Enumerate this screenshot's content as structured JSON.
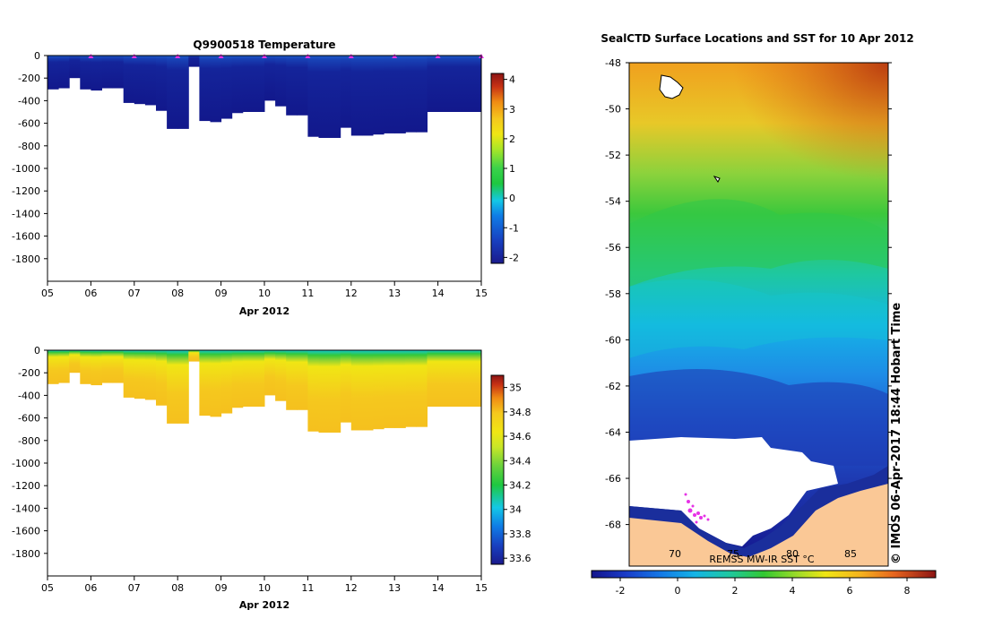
{
  "chart_data": [
    {
      "type": "heatmap",
      "title": "Q9900518  Temperature",
      "xlabel": "Apr 2012",
      "ylabel": "",
      "x_ticks": [
        "05",
        "06",
        "07",
        "08",
        "09",
        "10",
        "11",
        "12",
        "13",
        "14",
        "15"
      ],
      "xlim": [
        5,
        15
      ],
      "y_ticks": [
        0,
        -200,
        -400,
        -600,
        -800,
        -1000,
        -1200,
        -1400,
        -1600,
        -1800
      ],
      "ylim": [
        -2000,
        0
      ],
      "profile_days": [
        5.0,
        5.25,
        5.5,
        5.75,
        6.0,
        6.25,
        6.5,
        6.75,
        7.0,
        7.25,
        7.5,
        7.75,
        8.0,
        8.25,
        8.5,
        8.75,
        9.0,
        9.25,
        9.5,
        9.75,
        10.0,
        10.25,
        10.5,
        10.75,
        11.0,
        11.25,
        11.5,
        11.75,
        12.0,
        12.25,
        12.5,
        12.75,
        13.0,
        13.25,
        13.5,
        13.75,
        14.0,
        14.25,
        14.5,
        14.75
      ],
      "profile_max_depth": [
        -300,
        -290,
        -200,
        -300,
        -310,
        -290,
        -290,
        -420,
        -430,
        -440,
        -490,
        -650,
        -650,
        -100,
        -580,
        -590,
        -560,
        -510,
        -500,
        -500,
        -400,
        -450,
        -530,
        -530,
        -720,
        -730,
        -730,
        -640,
        -710,
        -710,
        -700,
        -690,
        -690,
        -680,
        -680,
        -500,
        -500,
        -500,
        -500,
        -500
      ],
      "surface_markers": [
        6,
        7,
        8,
        9,
        10,
        11,
        12,
        13,
        14,
        15
      ],
      "colorbar": {
        "ticks": [
          4,
          3,
          2,
          1,
          0,
          -1,
          -2
        ],
        "min": -2.2,
        "max": 4.2,
        "colors": [
          "#1a1a8c",
          "#1840c0",
          "#0f7ce6",
          "#14c8e6",
          "#1ec840",
          "#3ad24a",
          "#a8e628",
          "#f0e614",
          "#f5c81e",
          "#f08c14",
          "#c83214",
          "#8c1414"
        ]
      },
      "field_summary": "Near-surface ~ -0.5 to 0 °C, deep water ~ -1.8 °C"
    },
    {
      "type": "heatmap",
      "title": "",
      "xlabel": "Apr 2012",
      "x_ticks": [
        "05",
        "06",
        "07",
        "08",
        "09",
        "10",
        "11",
        "12",
        "13",
        "14",
        "15"
      ],
      "xlim": [
        5,
        15
      ],
      "y_ticks": [
        0,
        -200,
        -400,
        -600,
        -800,
        -1000,
        -1200,
        -1400,
        -1600,
        -1800
      ],
      "ylim": [
        -2000,
        0
      ],
      "colorbar": {
        "ticks": [
          35,
          34.8,
          34.6,
          34.4,
          34.2,
          34,
          33.8,
          33.6
        ],
        "min": 33.55,
        "max": 35.1,
        "colors": [
          "#1a1a8c",
          "#1840c0",
          "#0f7ce6",
          "#14c8e6",
          "#1ec840",
          "#6ad23c",
          "#c8e628",
          "#f0e614",
          "#f5c81e",
          "#f08c14",
          "#c83214",
          "#8c1414"
        ]
      },
      "field_summary": "Surface ~34.0–34.2, below 200 m ~34.6–34.7"
    },
    {
      "type": "heatmap",
      "title": "SealCTD Surface Locations and SST for 10 Apr 2012",
      "y_ticks": [
        -48,
        -50,
        -52,
        -54,
        -56,
        -58,
        -60,
        -62,
        -64,
        -66,
        -68
      ],
      "ylim": [
        -69.8,
        -48
      ],
      "inner_labels": [
        "70",
        "75",
        "80",
        "85"
      ],
      "colorbar": {
        "ticks": [
          -2,
          0,
          2,
          4,
          6,
          8
        ],
        "min": -3,
        "max": 9
      },
      "source_label": "REMSS MW-IR SST °C",
      "watermark": "© IMOS 06-Apr-2017 18:44 Hobart Time"
    }
  ]
}
